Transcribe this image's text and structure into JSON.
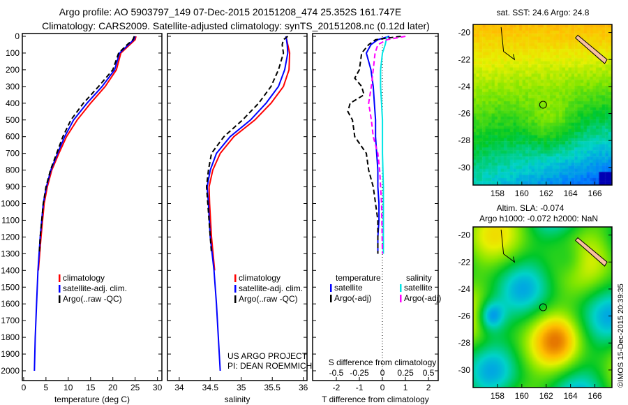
{
  "title_line1": "Argo profile: AO 5903797_149 07-Dec-2015 20151208_474 25.352S 161.747E",
  "title_line2": "Climatology: CARS2009. Satellite-adjusted climatology: synTS_20151208.nc (0.12d later)",
  "credit": "©IMOS 15-Dec-2015 20:39:35",
  "project_line1": "US ARGO PROJECT",
  "project_line2": "PI: DEAN ROEMMICH",
  "chart_data": [
    {
      "type": "line",
      "id": "temperature",
      "xlabel": "temperature (deg C)",
      "xlim": [
        -0.3,
        31
      ],
      "ylim": [
        2000,
        0
      ],
      "xticks": [
        0,
        5,
        10,
        15,
        20,
        25,
        30
      ],
      "yticks": [
        0,
        100,
        200,
        300,
        400,
        500,
        600,
        700,
        800,
        900,
        1000,
        1100,
        1200,
        1300,
        1400,
        1500,
        1600,
        1700,
        1800,
        1900,
        2000
      ],
      "legend": [
        "climatology",
        "satellite-adj. clim.",
        "Argo(..raw -QC)"
      ],
      "series": [
        {
          "name": "climatology",
          "color": "#ff0000",
          "dash": false,
          "depth": [
            0,
            20,
            50,
            100,
            200,
            300,
            400,
            500,
            600,
            700,
            800,
            900,
            1000,
            1200,
            1400
          ],
          "values": [
            25.2,
            25,
            23.8,
            21.8,
            20.8,
            18.3,
            15,
            12,
            9.6,
            7.9,
            6.3,
            5.3,
            4.6,
            3.9,
            3.3
          ]
        },
        {
          "name": "satellite-adj. clim.",
          "color": "#0000ff",
          "dash": false,
          "depth": [
            0,
            20,
            50,
            100,
            200,
            300,
            400,
            500,
            600,
            700,
            800,
            900,
            1000,
            1200,
            1400,
            1600,
            1800,
            2000
          ],
          "values": [
            25,
            24.7,
            23.5,
            21.5,
            20.4,
            17.6,
            14.2,
            11.2,
            9.2,
            7.6,
            6.1,
            5.1,
            4.4,
            3.7,
            3.2,
            2.9,
            2.6,
            2.4
          ]
        },
        {
          "name": "Argo(..raw -QC)",
          "color": "#000000",
          "dash": true,
          "depth": [
            0,
            20,
            50,
            100,
            200,
            300,
            400,
            500,
            600,
            700,
            800,
            900,
            1000,
            1200,
            1300
          ],
          "values": [
            24.8,
            24.5,
            23.2,
            21.3,
            20,
            16.8,
            13.4,
            10.6,
            8.8,
            7.4,
            6,
            5,
            4.4,
            3.7,
            3.5
          ]
        }
      ]
    },
    {
      "type": "line",
      "id": "salinity",
      "xlabel": "salinity",
      "xlim": [
        33.81,
        36.06
      ],
      "ylim": [
        2000,
        0
      ],
      "xticks": [
        34,
        34.5,
        35,
        35.5,
        36
      ],
      "legend": [
        "climatology",
        "satellite-adj. clim.",
        "Argo(..raw -QC)"
      ],
      "series": [
        {
          "name": "climatology",
          "color": "#ff0000",
          "dash": false,
          "depth": [
            0,
            50,
            100,
            200,
            300,
            400,
            500,
            600,
            700,
            800,
            900,
            1000,
            1200,
            1400
          ],
          "values": [
            35.72,
            35.75,
            35.78,
            35.77,
            35.68,
            35.48,
            35.22,
            34.88,
            34.66,
            34.54,
            34.48,
            34.49,
            34.52,
            34.57
          ]
        },
        {
          "name": "satellite-adj. clim.",
          "color": "#0000ff",
          "dash": false,
          "depth": [
            0,
            50,
            100,
            200,
            300,
            400,
            500,
            600,
            700,
            800,
            900,
            1000,
            1200,
            1400,
            1600,
            1800,
            2000
          ],
          "values": [
            35.72,
            35.74,
            35.75,
            35.7,
            35.6,
            35.4,
            35.15,
            34.82,
            34.6,
            34.5,
            34.45,
            34.47,
            34.5,
            34.56,
            34.6,
            34.63,
            34.66
          ]
        },
        {
          "name": "Argo(..raw -QC)",
          "color": "#000000",
          "dash": true,
          "depth": [
            0,
            20,
            50,
            100,
            200,
            300,
            400,
            500,
            600,
            700,
            800,
            900,
            1000,
            1200,
            1300
          ],
          "values": [
            35.75,
            35.68,
            35.66,
            35.68,
            35.6,
            35.48,
            35.28,
            35.02,
            34.72,
            34.52,
            34.47,
            34.44,
            34.46,
            34.5,
            34.52
          ]
        }
      ]
    },
    {
      "type": "line",
      "id": "difference",
      "xlabel": "T difference from climatology",
      "x2label": "S difference from climatology",
      "xlim": [
        -3.03,
        2.42
      ],
      "x2lim": [
        -0.7575,
        0.605
      ],
      "ylim": [
        2000,
        0
      ],
      "xticks": [
        -2,
        -1,
        0,
        1,
        2
      ],
      "x2ticks": [
        -0.5,
        -0.25,
        0,
        0.25,
        0.5
      ],
      "legend_headers": [
        "temperature",
        "salinity"
      ],
      "legend": [
        "satellite",
        "Argo(-adj)",
        "satellite",
        "Argo(-adj)"
      ],
      "series": [
        {
          "name": "temperature satellite",
          "axis": "T",
          "color": "#0000ff",
          "dash": false,
          "depth": [
            0,
            20,
            50,
            100,
            150,
            200,
            300,
            400,
            500,
            600,
            700,
            800,
            900,
            1000,
            1100,
            1200,
            1300
          ],
          "values": [
            0.3,
            -0.2,
            -0.5,
            -0.7,
            -0.6,
            -0.5,
            -0.4,
            -0.35,
            -0.3,
            -0.3,
            -0.25,
            -0.2,
            -0.2,
            -0.15,
            -0.15,
            -0.2,
            -0.2
          ]
        },
        {
          "name": "temperature Argo(-adj)",
          "axis": "T",
          "color": "#000000",
          "dash": true,
          "depth": [
            0,
            20,
            50,
            100,
            200,
            250,
            300,
            350,
            400,
            450,
            500,
            600,
            700,
            800,
            900,
            1000,
            1100,
            1200,
            1300
          ],
          "values": [
            0.8,
            -0.3,
            -0.6,
            -0.9,
            -1.0,
            -1.2,
            -0.9,
            -0.8,
            -1.4,
            -1.5,
            -1.3,
            -1.2,
            -0.7,
            -0.6,
            -0.4,
            -0.3,
            -0.2,
            -0.2,
            -0.2
          ]
        },
        {
          "name": "salinity satellite",
          "axis": "S",
          "color": "#00e5e5",
          "dash": false,
          "depth": [
            0,
            50,
            100,
            200,
            300,
            400,
            500,
            700,
            900,
            1100,
            1300
          ],
          "values": [
            0.05,
            0.03,
            0.0,
            -0.02,
            -0.02,
            -0.01,
            0.0,
            0.0,
            0.01,
            0.01,
            0.01
          ]
        },
        {
          "name": "salinity Argo(-adj)",
          "axis": "S",
          "color": "#ff00ff",
          "dash": true,
          "depth": [
            0,
            20,
            50,
            100,
            200,
            300,
            400,
            500,
            600,
            700,
            800,
            1000,
            1300
          ],
          "values": [
            0.25,
            0.05,
            -0.05,
            -0.08,
            -0.1,
            -0.12,
            -0.15,
            -0.12,
            -0.1,
            -0.05,
            -0.03,
            -0.01,
            0.0
          ]
        }
      ]
    },
    {
      "type": "heatmap",
      "id": "sst-map",
      "title": "sat. SST: 24.6 Argo: 24.8",
      "xticks": [
        158,
        160,
        162,
        164,
        166
      ],
      "yticks": [
        -20,
        -22,
        -24,
        -26,
        -28,
        -30
      ],
      "xlim": [
        156,
        167.4
      ],
      "ylim": [
        -31.3,
        -19.4
      ],
      "marker": [
        161.747,
        -25.352
      ]
    },
    {
      "type": "heatmap",
      "id": "sla-map",
      "title_line1": "Altim. SLA: -0.074",
      "title_line2": "Argo h1000: -0.072 h2000: NaN",
      "xticks": [
        158,
        160,
        162,
        164,
        166
      ],
      "yticks": [
        -20,
        -22,
        -24,
        -26,
        -28,
        -30
      ],
      "xlim": [
        156,
        167.4
      ],
      "ylim": [
        -31.3,
        -19.4
      ],
      "marker": [
        161.747,
        -25.352
      ]
    }
  ]
}
